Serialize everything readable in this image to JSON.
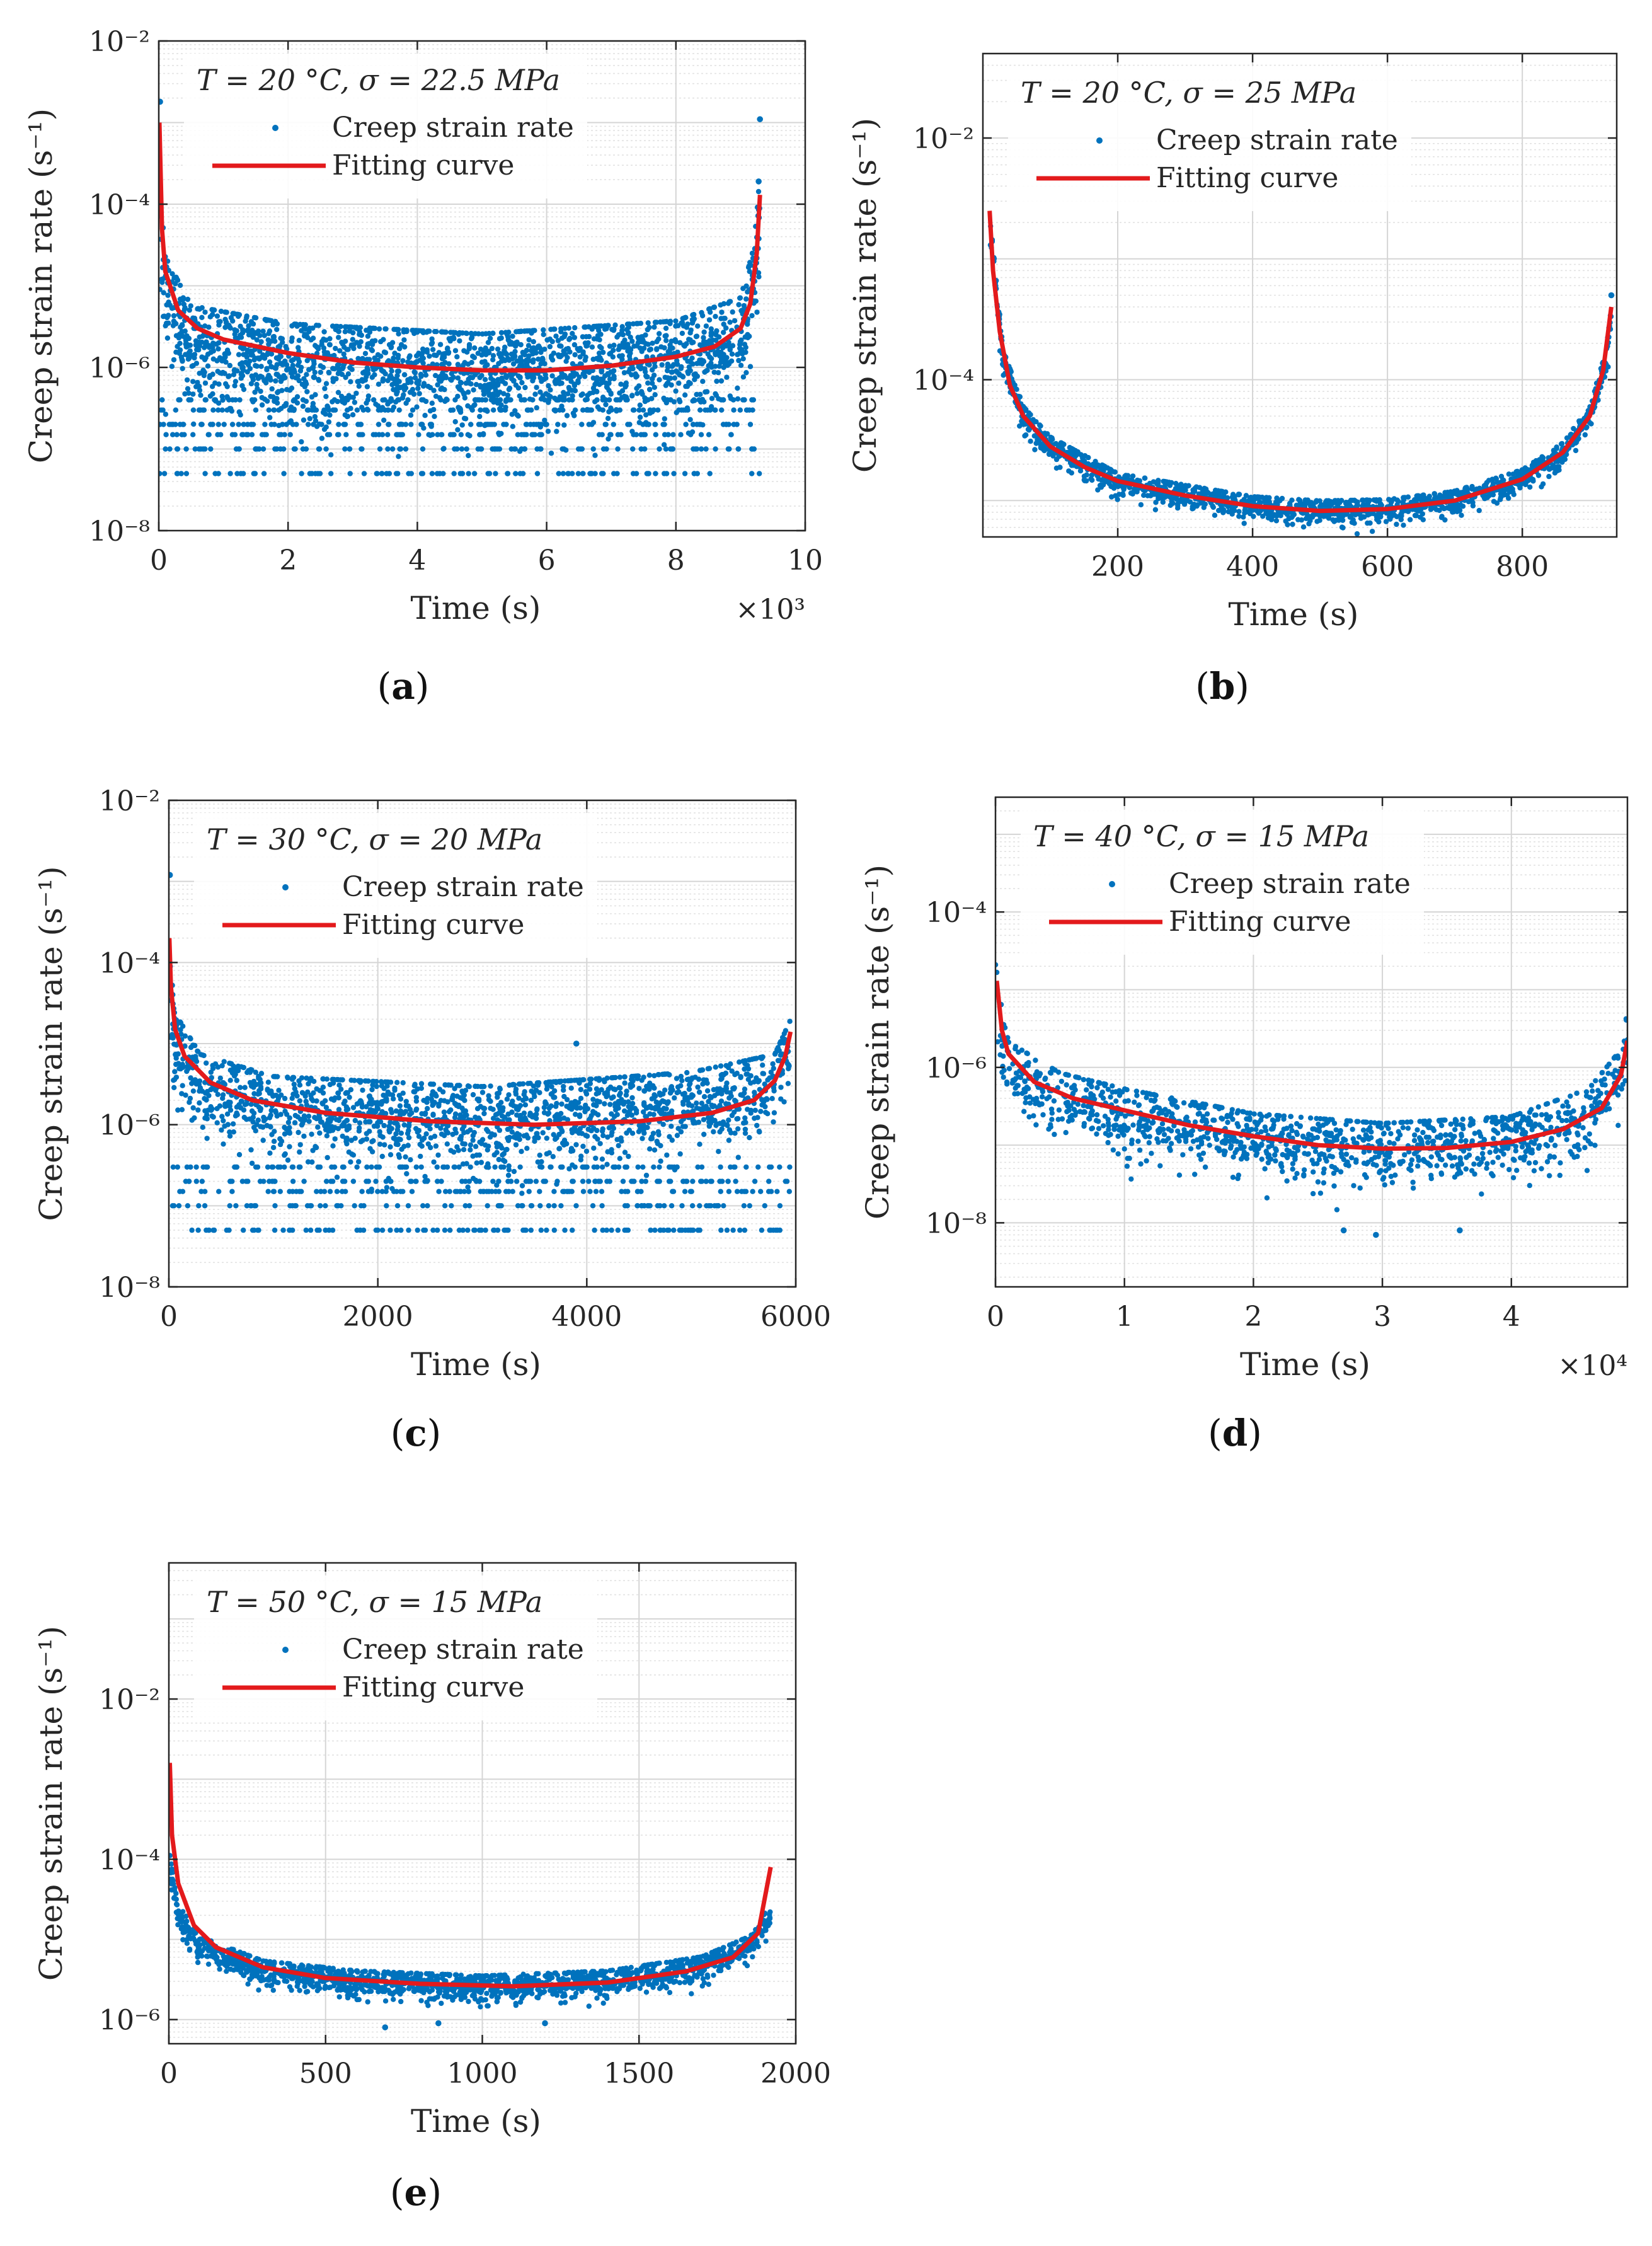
{
  "colors": {
    "points": "#0072BD",
    "curve": "#E31A1C",
    "grid": "#DCDCDC",
    "axis": "#262626"
  },
  "chart_data": [
    {
      "panel": "(a)",
      "panel_letter": "a",
      "type": "scatter",
      "title": "T = 20 °C, σ = 22.5 MPa",
      "xlabel": "Time (s)",
      "ylabel": "Creep strain rate (s⁻¹)",
      "x_multiplier_label": "×10³",
      "x_scale_factor": 1000,
      "xlim": [
        0,
        10
      ],
      "yscale": "log",
      "ylim": [
        1e-08,
        0.01
      ],
      "xticks": [
        0,
        2,
        4,
        6,
        8,
        10
      ],
      "xtick_labels": [
        "0",
        "2",
        "4",
        "6",
        "8",
        "10"
      ],
      "yticks": [
        1e-08,
        1e-06,
        0.0001,
        0.01
      ],
      "ytick_labels": [
        "10⁻⁸",
        "10⁻⁶",
        "10⁻⁴",
        "10⁻²"
      ],
      "grid": true,
      "legend_placement": "top-left",
      "legend": [
        "Creep strain rate",
        "Fitting curve"
      ],
      "series": [
        {
          "name": "Creep strain rate",
          "kind": "scatter",
          "n_points": 2600,
          "x_range": [
            0,
            9.3
          ],
          "median_profile": [
            [
              0,
              0.0001
            ],
            [
              0.1,
              8e-06
            ],
            [
              0.5,
              2e-06
            ],
            [
              2,
              1.2e-06
            ],
            [
              5,
              9e-07
            ],
            [
              8,
              1.3e-06
            ],
            [
              9,
              2.5e-06
            ],
            [
              9.2,
              1e-05
            ],
            [
              9.3,
              0.0001
            ]
          ],
          "scatter_spread_decades": 0.35,
          "quantized_floor_levels": [
            5e-08,
            1e-07,
            1.5e-07,
            2e-07,
            3e-07,
            4e-07
          ],
          "outliers": [
            [
              0.02,
              0.0018
            ],
            [
              9.3,
              0.0011
            ],
            [
              9.28,
              0.00019
            ]
          ]
        },
        {
          "name": "Fitting curve",
          "kind": "line",
          "points": [
            [
              0.01,
              0.001
            ],
            [
              0.05,
              5e-05
            ],
            [
              0.1,
              1.5e-05
            ],
            [
              0.3,
              5e-06
            ],
            [
              0.6,
              3e-06
            ],
            [
              1,
              2.2e-06
            ],
            [
              2,
              1.5e-06
            ],
            [
              3,
              1.15e-06
            ],
            [
              4,
              1e-06
            ],
            [
              5,
              9.2e-07
            ],
            [
              6,
              9.2e-07
            ],
            [
              7,
              1.05e-06
            ],
            [
              8,
              1.35e-06
            ],
            [
              8.6,
              1.8e-06
            ],
            [
              9,
              3e-06
            ],
            [
              9.15,
              6e-06
            ],
            [
              9.25,
              2.5e-05
            ],
            [
              9.3,
              0.00013
            ]
          ]
        }
      ]
    },
    {
      "panel": "(b)",
      "panel_letter": "b",
      "type": "scatter",
      "title": "T = 20 °C, σ = 25 MPa",
      "xlabel": "Time (s)",
      "ylabel": "Creep strain rate (s⁻¹)",
      "x_multiplier_label": "",
      "x_scale_factor": 1,
      "xlim": [
        0,
        940
      ],
      "yscale": "log",
      "ylim": [
        5e-06,
        0.05
      ],
      "xticks": [
        200,
        400,
        600,
        800
      ],
      "xtick_labels": [
        "200",
        "400",
        "600",
        "800"
      ],
      "yticks": [
        0.0001,
        0.01
      ],
      "ytick_labels": [
        "10⁻⁴",
        "10⁻²"
      ],
      "grid": true,
      "legend_placement": "top-left",
      "legend": [
        "Creep strain rate",
        "Fitting curve"
      ],
      "series": [
        {
          "name": "Creep strain rate",
          "kind": "scatter",
          "n_points": 1500,
          "x_range": [
            10,
            932
          ],
          "median_profile": [
            [
              10,
              0.002
            ],
            [
              30,
              0.00015
            ],
            [
              60,
              5e-05
            ],
            [
              100,
              2.8e-05
            ],
            [
              200,
              1.4e-05
            ],
            [
              400,
              9e-06
            ],
            [
              500,
              8.3e-06
            ],
            [
              600,
              8.5e-06
            ],
            [
              700,
              1e-05
            ],
            [
              800,
              1.5e-05
            ],
            [
              860,
              2.5e-05
            ],
            [
              900,
              5e-05
            ],
            [
              925,
              0.00015
            ],
            [
              932,
              0.0004
            ]
          ],
          "scatter_spread_decades": 0.06,
          "quantized_floor_levels": [],
          "outliers": [
            [
              932,
              0.0005
            ]
          ]
        },
        {
          "name": "Fitting curve",
          "kind": "line",
          "points": [
            [
              10,
              0.0025
            ],
            [
              15,
              0.0008
            ],
            [
              25,
              0.00025
            ],
            [
              40,
              9e-05
            ],
            [
              60,
              5e-05
            ],
            [
              100,
              2.8e-05
            ],
            [
              150,
              1.9e-05
            ],
            [
              200,
              1.45e-05
            ],
            [
              300,
              1.1e-05
            ],
            [
              400,
              9e-06
            ],
            [
              500,
              8.2e-06
            ],
            [
              600,
              8.5e-06
            ],
            [
              700,
              1e-05
            ],
            [
              800,
              1.5e-05
            ],
            [
              860,
              2.5e-05
            ],
            [
              900,
              5e-05
            ],
            [
              920,
              0.00012
            ],
            [
              932,
              0.0004
            ]
          ]
        }
      ]
    },
    {
      "panel": "(c)",
      "panel_letter": "c",
      "type": "scatter",
      "title": "T = 30 °C, σ = 20 MPa",
      "xlabel": "Time (s)",
      "ylabel": "Creep strain rate (s⁻¹)",
      "x_multiplier_label": "",
      "x_scale_factor": 1,
      "xlim": [
        0,
        6000
      ],
      "yscale": "log",
      "ylim": [
        1e-08,
        0.01
      ],
      "xticks": [
        0,
        2000,
        4000,
        6000
      ],
      "xtick_labels": [
        "0",
        "2000",
        "4000",
        "6000"
      ],
      "yticks": [
        1e-08,
        1e-06,
        0.0001,
        0.01
      ],
      "ytick_labels": [
        "10⁻⁸",
        "10⁻⁶",
        "10⁻⁴",
        "10⁻²"
      ],
      "grid": true,
      "legend_placement": "top-left",
      "legend": [
        "Creep strain rate",
        "Fitting curve"
      ],
      "series": [
        {
          "name": "Creep strain rate",
          "kind": "scatter",
          "n_points": 2200,
          "x_range": [
            0,
            5950
          ],
          "median_profile": [
            [
              0,
              0.0001
            ],
            [
              50,
              1e-05
            ],
            [
              300,
              3e-06
            ],
            [
              1000,
              1.6e-06
            ],
            [
              3000,
              1.2e-06
            ],
            [
              5000,
              1.8e-06
            ],
            [
              5800,
              3e-06
            ],
            [
              5950,
              8e-06
            ]
          ],
          "scatter_spread_decades": 0.3,
          "quantized_floor_levels": [
            5e-08,
            1e-07,
            1.5e-07,
            2e-07,
            3e-07
          ],
          "outliers": [
            [
              10,
              0.0012
            ],
            [
              3900,
              1e-05
            ]
          ]
        },
        {
          "name": "Fitting curve",
          "kind": "line",
          "points": [
            [
              5,
              0.0002
            ],
            [
              20,
              5e-05
            ],
            [
              60,
              1.5e-05
            ],
            [
              150,
              7e-06
            ],
            [
              400,
              3.3e-06
            ],
            [
              800,
              2e-06
            ],
            [
              1500,
              1.4e-06
            ],
            [
              2500,
              1.1e-06
            ],
            [
              3500,
              1e-06
            ],
            [
              4500,
              1.1e-06
            ],
            [
              5200,
              1.4e-06
            ],
            [
              5600,
              2e-06
            ],
            [
              5800,
              3.5e-06
            ],
            [
              5900,
              7e-06
            ],
            [
              5950,
              1.4e-05
            ]
          ]
        }
      ]
    },
    {
      "panel": "(d)",
      "panel_letter": "d",
      "type": "scatter",
      "title": "T = 40 °C, σ = 15 MPa",
      "xlabel": "Time (s)",
      "ylabel": "Creep strain rate (s⁻¹)",
      "x_multiplier_label": "×10⁴",
      "x_scale_factor": 10000,
      "xlim": [
        0,
        4.9
      ],
      "yscale": "log",
      "ylim": [
        1.5e-09,
        0.003
      ],
      "xticks": [
        0,
        1,
        2,
        3,
        4
      ],
      "xtick_labels": [
        "0",
        "1",
        "2",
        "3",
        "4"
      ],
      "yticks": [
        1e-08,
        1e-06,
        0.0001
      ],
      "ytick_labels": [
        "10⁻⁸",
        "10⁻⁶",
        "10⁻⁴"
      ],
      "grid": true,
      "legend_placement": "top-left",
      "legend": [
        "Creep strain rate",
        "Fitting curve"
      ],
      "series": [
        {
          "name": "Creep strain rate",
          "kind": "scatter",
          "n_points": 1300,
          "x_range": [
            0,
            4.9
          ],
          "median_profile": [
            [
              0,
              1e-05
            ],
            [
              0.1,
              1e-06
            ],
            [
              0.5,
              4e-07
            ],
            [
              1,
              2.5e-07
            ],
            [
              2,
              1.2e-07
            ],
            [
              3,
              9e-08
            ],
            [
              4,
              1.1e-07
            ],
            [
              4.6,
              2.5e-07
            ],
            [
              4.85,
              8e-07
            ],
            [
              4.9,
              3e-06
            ]
          ],
          "scatter_spread_decades": 0.25,
          "quantized_floor_levels": [],
          "outliers": [
            [
              2.7,
              8e-09
            ],
            [
              3.6,
              8e-09
            ],
            [
              2.95,
              7e-09
            ]
          ]
        },
        {
          "name": "Fitting curve",
          "kind": "line",
          "points": [
            [
              0.01,
              1.3e-05
            ],
            [
              0.05,
              3e-06
            ],
            [
              0.1,
              1.5e-06
            ],
            [
              0.3,
              6.5e-07
            ],
            [
              0.6,
              4e-07
            ],
            [
              1,
              2.8e-07
            ],
            [
              1.5,
              1.8e-07
            ],
            [
              2,
              1.3e-07
            ],
            [
              2.5,
              1e-07
            ],
            [
              3,
              9e-08
            ],
            [
              3.5,
              9.2e-08
            ],
            [
              4,
              1.1e-07
            ],
            [
              4.4,
              1.6e-07
            ],
            [
              4.7,
              3e-07
            ],
            [
              4.85,
              8e-07
            ],
            [
              4.9,
              2.2e-06
            ]
          ]
        }
      ]
    },
    {
      "panel": "(e)",
      "panel_letter": "e",
      "type": "scatter",
      "title": "T = 50 °C, σ = 15 MPa",
      "xlabel": "Time (s)",
      "ylabel": "Creep strain rate (s⁻¹)",
      "x_multiplier_label": "",
      "x_scale_factor": 1,
      "xlim": [
        0,
        2000
      ],
      "yscale": "log",
      "ylim": [
        5e-07,
        0.5
      ],
      "xticks": [
        0,
        500,
        1000,
        1500,
        2000
      ],
      "xtick_labels": [
        "0",
        "500",
        "1000",
        "1500",
        "2000"
      ],
      "yticks": [
        1e-06,
        0.0001,
        0.01
      ],
      "ytick_labels": [
        "10⁻⁶",
        "10⁻⁴",
        "10⁻²"
      ],
      "grid": true,
      "legend_placement": "top-left",
      "legend": [
        "Creep strain rate",
        "Fitting curve"
      ],
      "series": [
        {
          "name": "Creep strain rate",
          "kind": "scatter",
          "n_points": 1600,
          "x_range": [
            0,
            1920
          ],
          "median_profile": [
            [
              0,
              0.0001
            ],
            [
              30,
              2e-05
            ],
            [
              100,
              8e-06
            ],
            [
              300,
              4e-06
            ],
            [
              600,
              3e-06
            ],
            [
              1000,
              2.6e-06
            ],
            [
              1400,
              3e-06
            ],
            [
              1700,
              4.5e-06
            ],
            [
              1850,
              8e-06
            ],
            [
              1920,
              2e-05
            ]
          ],
          "scatter_spread_decades": 0.1,
          "quantized_floor_levels": [],
          "outliers": [
            [
              690,
              8e-07
            ],
            [
              860,
              9e-07
            ],
            [
              1200,
              9e-07
            ]
          ]
        },
        {
          "name": "Fitting curve",
          "kind": "line",
          "points": [
            [
              3,
              0.0016
            ],
            [
              10,
              0.0002
            ],
            [
              30,
              5e-05
            ],
            [
              80,
              1.5e-05
            ],
            [
              150,
              8e-06
            ],
            [
              300,
              4.5e-06
            ],
            [
              500,
              3.3e-06
            ],
            [
              800,
              2.8e-06
            ],
            [
              1100,
              2.6e-06
            ],
            [
              1400,
              2.9e-06
            ],
            [
              1650,
              4e-06
            ],
            [
              1800,
              6e-06
            ],
            [
              1880,
              1.2e-05
            ],
            [
              1920,
              8e-05
            ]
          ]
        }
      ]
    }
  ]
}
